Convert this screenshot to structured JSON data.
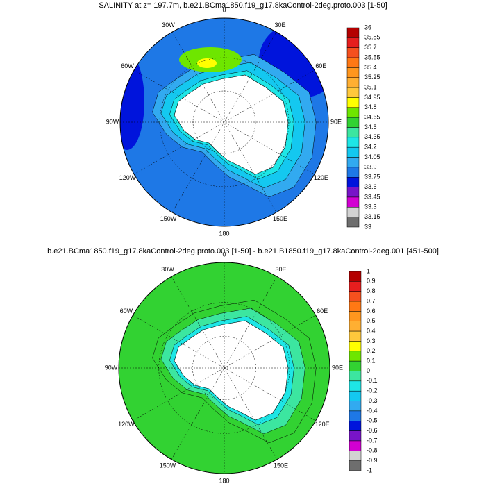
{
  "panels": [
    {
      "title": "SALINITY at z= 197.7m, b.e21.BCma1850.f19_g17.8kaControl-2deg.proto.003 [1-50]",
      "lon_labels": [
        "0",
        "30E",
        "60E",
        "90E",
        "120E",
        "150E",
        "180",
        "150W",
        "120W",
        "90W",
        "60W",
        "30W"
      ],
      "colorbar": {
        "labels": [
          "36",
          "35.85",
          "35.7",
          "35.55",
          "35.4",
          "35.25",
          "35.1",
          "34.95",
          "34.8",
          "34.65",
          "34.5",
          "34.35",
          "34.2",
          "34.05",
          "33.9",
          "33.75",
          "33.6",
          "33.45",
          "33.3",
          "33.15",
          "33"
        ],
        "colors": [
          "#b40000",
          "#e61e1e",
          "#f5501e",
          "#ff7814",
          "#ff961e",
          "#ffaf32",
          "#ffc83c",
          "#ffff00",
          "#6ee600",
          "#32d232",
          "#3ce6a0",
          "#1ee6e6",
          "#14c8f0",
          "#32aaf0",
          "#1e78e6",
          "#0014dc",
          "#7814c8",
          "#d200d2",
          "#d2d2d2",
          "#6e6e6e"
        ]
      }
    },
    {
      "title": "b.e21.BCma1850.f19_g17.8kaControl-2deg.proto.003 [1-50] - b.e21.B1850.f19_g17.8kaControl-2deg.001 [451-500]",
      "lon_labels": [
        "0",
        "30E",
        "60E",
        "90E",
        "120E",
        "150E",
        "180",
        "150W",
        "120W",
        "90W",
        "60W",
        "30W"
      ],
      "colorbar": {
        "labels": [
          "1",
          "0.9",
          "0.8",
          "0.7",
          "0.6",
          "0.5",
          "0.4",
          "0.3",
          "0.2",
          "0.1",
          "0",
          "-0.1",
          "-0.2",
          "-0.3",
          "-0.4",
          "-0.5",
          "-0.6",
          "-0.7",
          "-0.8",
          "-0.9",
          "-1"
        ],
        "colors": [
          "#b40000",
          "#e61e1e",
          "#f5501e",
          "#ff7814",
          "#ff961e",
          "#ffaf32",
          "#ffc83c",
          "#ffff00",
          "#6ee600",
          "#32d232",
          "#3ce6a0",
          "#1ee6e6",
          "#14c8f0",
          "#32aaf0",
          "#1e78e6",
          "#0014dc",
          "#7814c8",
          "#d200d2",
          "#d2d2d2",
          "#6e6e6e"
        ]
      }
    }
  ]
}
